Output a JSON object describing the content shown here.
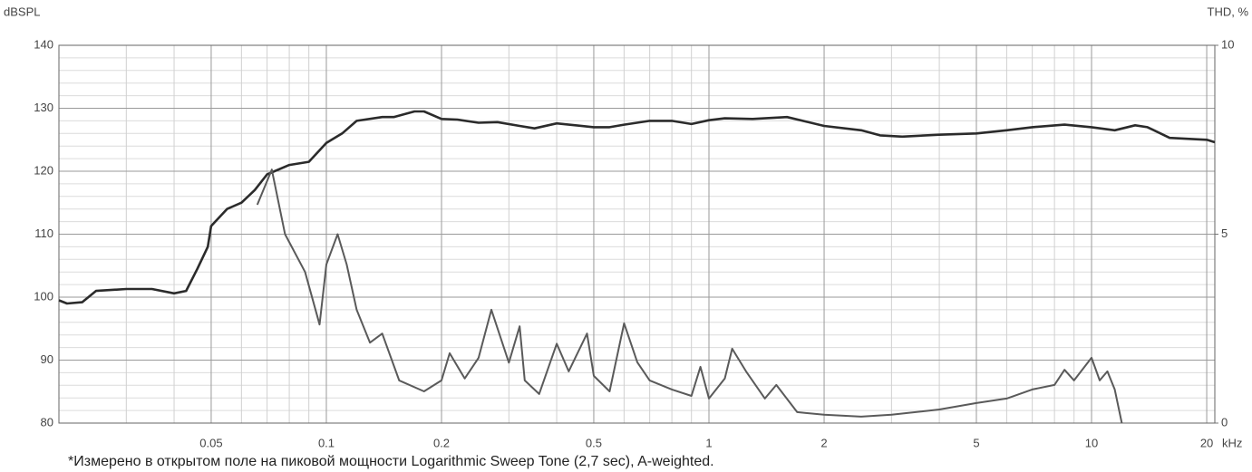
{
  "chart_data": {
    "type": "line",
    "y_label": "dBSPL",
    "y2_label": "THD, %",
    "x_label": "kHz",
    "note": "*Измерено в открытом поле на пиковой мощности Logarithmic Sweep Tone (2,7 sec), A-weighted.",
    "xscale": "log",
    "grid": true,
    "xlim": [
      0.02,
      21
    ],
    "xticks": [
      0.05,
      0.1,
      0.2,
      0.5,
      1,
      2,
      5,
      10,
      20
    ],
    "xminorticks": [
      0.03,
      0.04,
      0.06,
      0.07,
      0.08,
      0.09,
      0.3,
      0.4,
      0.6,
      0.7,
      0.8,
      0.9,
      3,
      4,
      6,
      7,
      8,
      9
    ],
    "ylim": [
      80,
      140
    ],
    "yticks": [
      80,
      90,
      100,
      110,
      120,
      130,
      140
    ],
    "yminorticks": [
      82,
      84,
      86,
      88,
      92,
      94,
      96,
      98,
      102,
      104,
      106,
      108,
      112,
      114,
      116,
      118,
      122,
      124,
      126,
      128,
      132,
      134,
      136,
      138
    ],
    "y2lim": [
      0,
      10
    ],
    "y2ticks": [
      0,
      5,
      10
    ],
    "series": [
      {
        "color": "#2b2b2b",
        "x": [
          0.02,
          0.021,
          0.023,
          0.025,
          0.03,
          0.035,
          0.04,
          0.043,
          0.046,
          0.049,
          0.05,
          0.055,
          0.06,
          0.065,
          0.07,
          0.08,
          0.09,
          0.1,
          0.11,
          0.12,
          0.14,
          0.15,
          0.17,
          0.18,
          0.2,
          0.22,
          0.25,
          0.28,
          0.32,
          0.35,
          0.4,
          0.5,
          0.55,
          0.6,
          0.7,
          0.8,
          0.9,
          1,
          1.1,
          1.3,
          1.6,
          2,
          2.5,
          2.8,
          3.2,
          4,
          5,
          6,
          7,
          8.5,
          10,
          11.5,
          13,
          14,
          16,
          20,
          21
        ],
        "values": [
          99.5,
          99,
          99.2,
          101,
          101.3,
          101.3,
          100.6,
          101,
          104.5,
          108,
          111.3,
          114,
          115,
          117,
          119.5,
          121,
          121.5,
          124.5,
          126,
          128,
          128.6,
          128.6,
          129.5,
          129.5,
          128.3,
          128.2,
          127.7,
          127.8,
          127.2,
          126.8,
          127.6,
          127,
          127,
          127.4,
          128,
          128,
          127.5,
          128.1,
          128.4,
          128.3,
          128.6,
          127.2,
          126.5,
          125.7,
          125.5,
          125.8,
          126,
          126.5,
          127,
          127.4,
          127,
          126.5,
          127.3,
          127,
          125.3,
          125,
          124.6
        ]
      },
      {
        "color": "#5a5a5a",
        "axis": "y2",
        "x": [
          0.066,
          0.072,
          0.078,
          0.088,
          0.096,
          0.1,
          0.107,
          0.113,
          0.12,
          0.13,
          0.14,
          0.155,
          0.18,
          0.2,
          0.21,
          0.23,
          0.25,
          0.27,
          0.3,
          0.32,
          0.33,
          0.36,
          0.4,
          0.43,
          0.48,
          0.5,
          0.55,
          0.6,
          0.65,
          0.7,
          0.8,
          0.9,
          0.95,
          1.0,
          1.1,
          1.15,
          1.25,
          1.4,
          1.5,
          1.7,
          2,
          2.5,
          3,
          4,
          5,
          6,
          7,
          8,
          8.5,
          9,
          10,
          10.5,
          11,
          11.5,
          12
        ],
        "values": [
          5.78,
          6.71,
          5.0,
          4.0,
          2.61,
          4.2,
          5.0,
          4.2,
          3.0,
          2.13,
          2.37,
          1.13,
          0.84,
          1.13,
          1.85,
          1.18,
          1.73,
          3.0,
          1.6,
          2.56,
          1.13,
          0.77,
          2.1,
          1.37,
          2.37,
          1.25,
          0.84,
          2.64,
          1.61,
          1.13,
          0.89,
          0.72,
          1.49,
          0.65,
          1.18,
          1.97,
          1.37,
          0.65,
          1.01,
          0.29,
          0.22,
          0.17,
          0.22,
          0.36,
          0.53,
          0.65,
          0.89,
          1.01,
          1.41,
          1.13,
          1.73,
          1.13,
          1.37,
          0.89,
          0
        ]
      }
    ]
  }
}
